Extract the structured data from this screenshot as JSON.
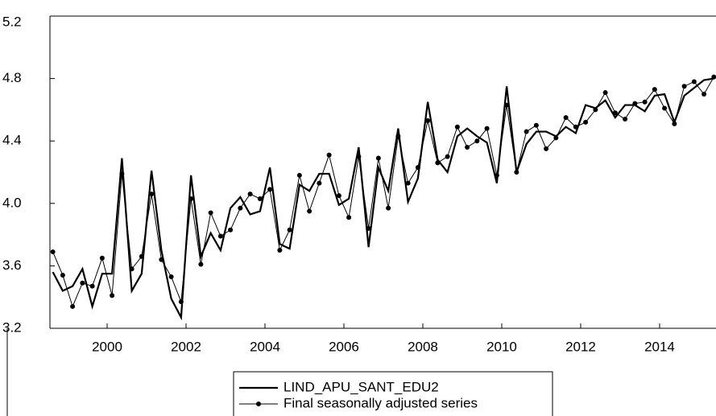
{
  "chart_data": {
    "type": "line",
    "x": [
      1999.125,
      1999.375,
      1999.625,
      1999.875,
      2000.125,
      2000.375,
      2000.625,
      2000.875,
      2001.125,
      2001.375,
      2001.625,
      2001.875,
      2002.125,
      2002.375,
      2002.625,
      2002.875,
      2003.125,
      2003.375,
      2003.625,
      2003.875,
      2004.125,
      2004.375,
      2004.625,
      2004.875,
      2005.125,
      2005.375,
      2005.625,
      2005.875,
      2006.125,
      2006.375,
      2006.625,
      2006.875,
      2007.125,
      2007.375,
      2007.625,
      2007.875,
      2008.125,
      2008.375,
      2008.625,
      2008.875,
      2009.125,
      2009.375,
      2009.625,
      2009.875,
      2010.125,
      2010.375,
      2010.625,
      2010.875,
      2011.125,
      2011.375,
      2011.625,
      2011.875,
      2012.125,
      2012.375,
      2012.625,
      2012.875,
      2013.125,
      2013.375,
      2013.625,
      2013.875,
      2014.125,
      2014.375,
      2014.625,
      2014.875,
      2015.125,
      2015.375,
      2015.625,
      2015.875
    ],
    "series": [
      {
        "name": "LIND_APU_SANT_EDU2",
        "color": "#000000",
        "values": [
          3.56,
          3.44,
          3.47,
          3.58,
          3.34,
          3.55,
          3.55,
          4.29,
          3.44,
          3.55,
          4.21,
          3.7,
          3.39,
          3.27,
          4.18,
          3.66,
          3.81,
          3.7,
          3.97,
          4.04,
          3.93,
          3.95,
          4.23,
          3.74,
          3.71,
          4.12,
          4.08,
          4.19,
          4.19,
          3.99,
          4.03,
          4.36,
          3.72,
          4.23,
          4.08,
          4.48,
          4.01,
          4.16,
          4.65,
          4.28,
          4.2,
          4.43,
          4.48,
          4.43,
          4.39,
          4.13,
          4.75,
          4.2,
          4.38,
          4.46,
          4.46,
          4.43,
          4.49,
          4.45,
          4.63,
          4.61,
          4.66,
          4.55,
          4.63,
          4.63,
          4.59,
          4.69,
          4.7,
          4.52,
          4.69,
          4.74,
          4.79,
          4.8
        ]
      },
      {
        "name": "Final seasonally adjusted series",
        "color": "#000000",
        "values": [
          3.69,
          3.54,
          3.34,
          3.49,
          3.47,
          3.65,
          3.41,
          4.19,
          3.58,
          3.66,
          4.06,
          3.64,
          3.53,
          3.37,
          4.03,
          3.61,
          3.94,
          3.79,
          3.83,
          3.97,
          4.06,
          4.03,
          4.09,
          3.7,
          3.83,
          4.18,
          3.95,
          4.13,
          4.31,
          4.05,
          3.91,
          4.3,
          3.84,
          4.29,
          3.97,
          4.43,
          4.13,
          4.23,
          4.53,
          4.26,
          4.3,
          4.49,
          4.36,
          4.4,
          4.48,
          4.18,
          4.63,
          4.2,
          4.46,
          4.5,
          4.35,
          4.42,
          4.55,
          4.49,
          4.52,
          4.6,
          4.71,
          4.58,
          4.54,
          4.64,
          4.65,
          4.73,
          4.61,
          4.51,
          4.75,
          4.78,
          4.7,
          4.81
        ]
      }
    ],
    "xlim": [
      1999.051,
      2015.929
    ],
    "xticks": [
      {
        "value": 2000.5,
        "label": "2000"
      },
      {
        "value": 2002.5,
        "label": "2002"
      },
      {
        "value": 2004.5,
        "label": "2004"
      },
      {
        "value": 2006.5,
        "label": "2006"
      },
      {
        "value": 2008.5,
        "label": "2008"
      },
      {
        "value": 2010.5,
        "label": "2010"
      },
      {
        "value": 2012.5,
        "label": "2012"
      },
      {
        "value": 2014.5,
        "label": "2014"
      }
    ],
    "ylim": [
      3.2,
      5.2
    ],
    "yticks": [
      3.2,
      3.6,
      {
        "value": 4,
        "label": "4.0"
      },
      4.4,
      4.8,
      5.2
    ]
  }
}
